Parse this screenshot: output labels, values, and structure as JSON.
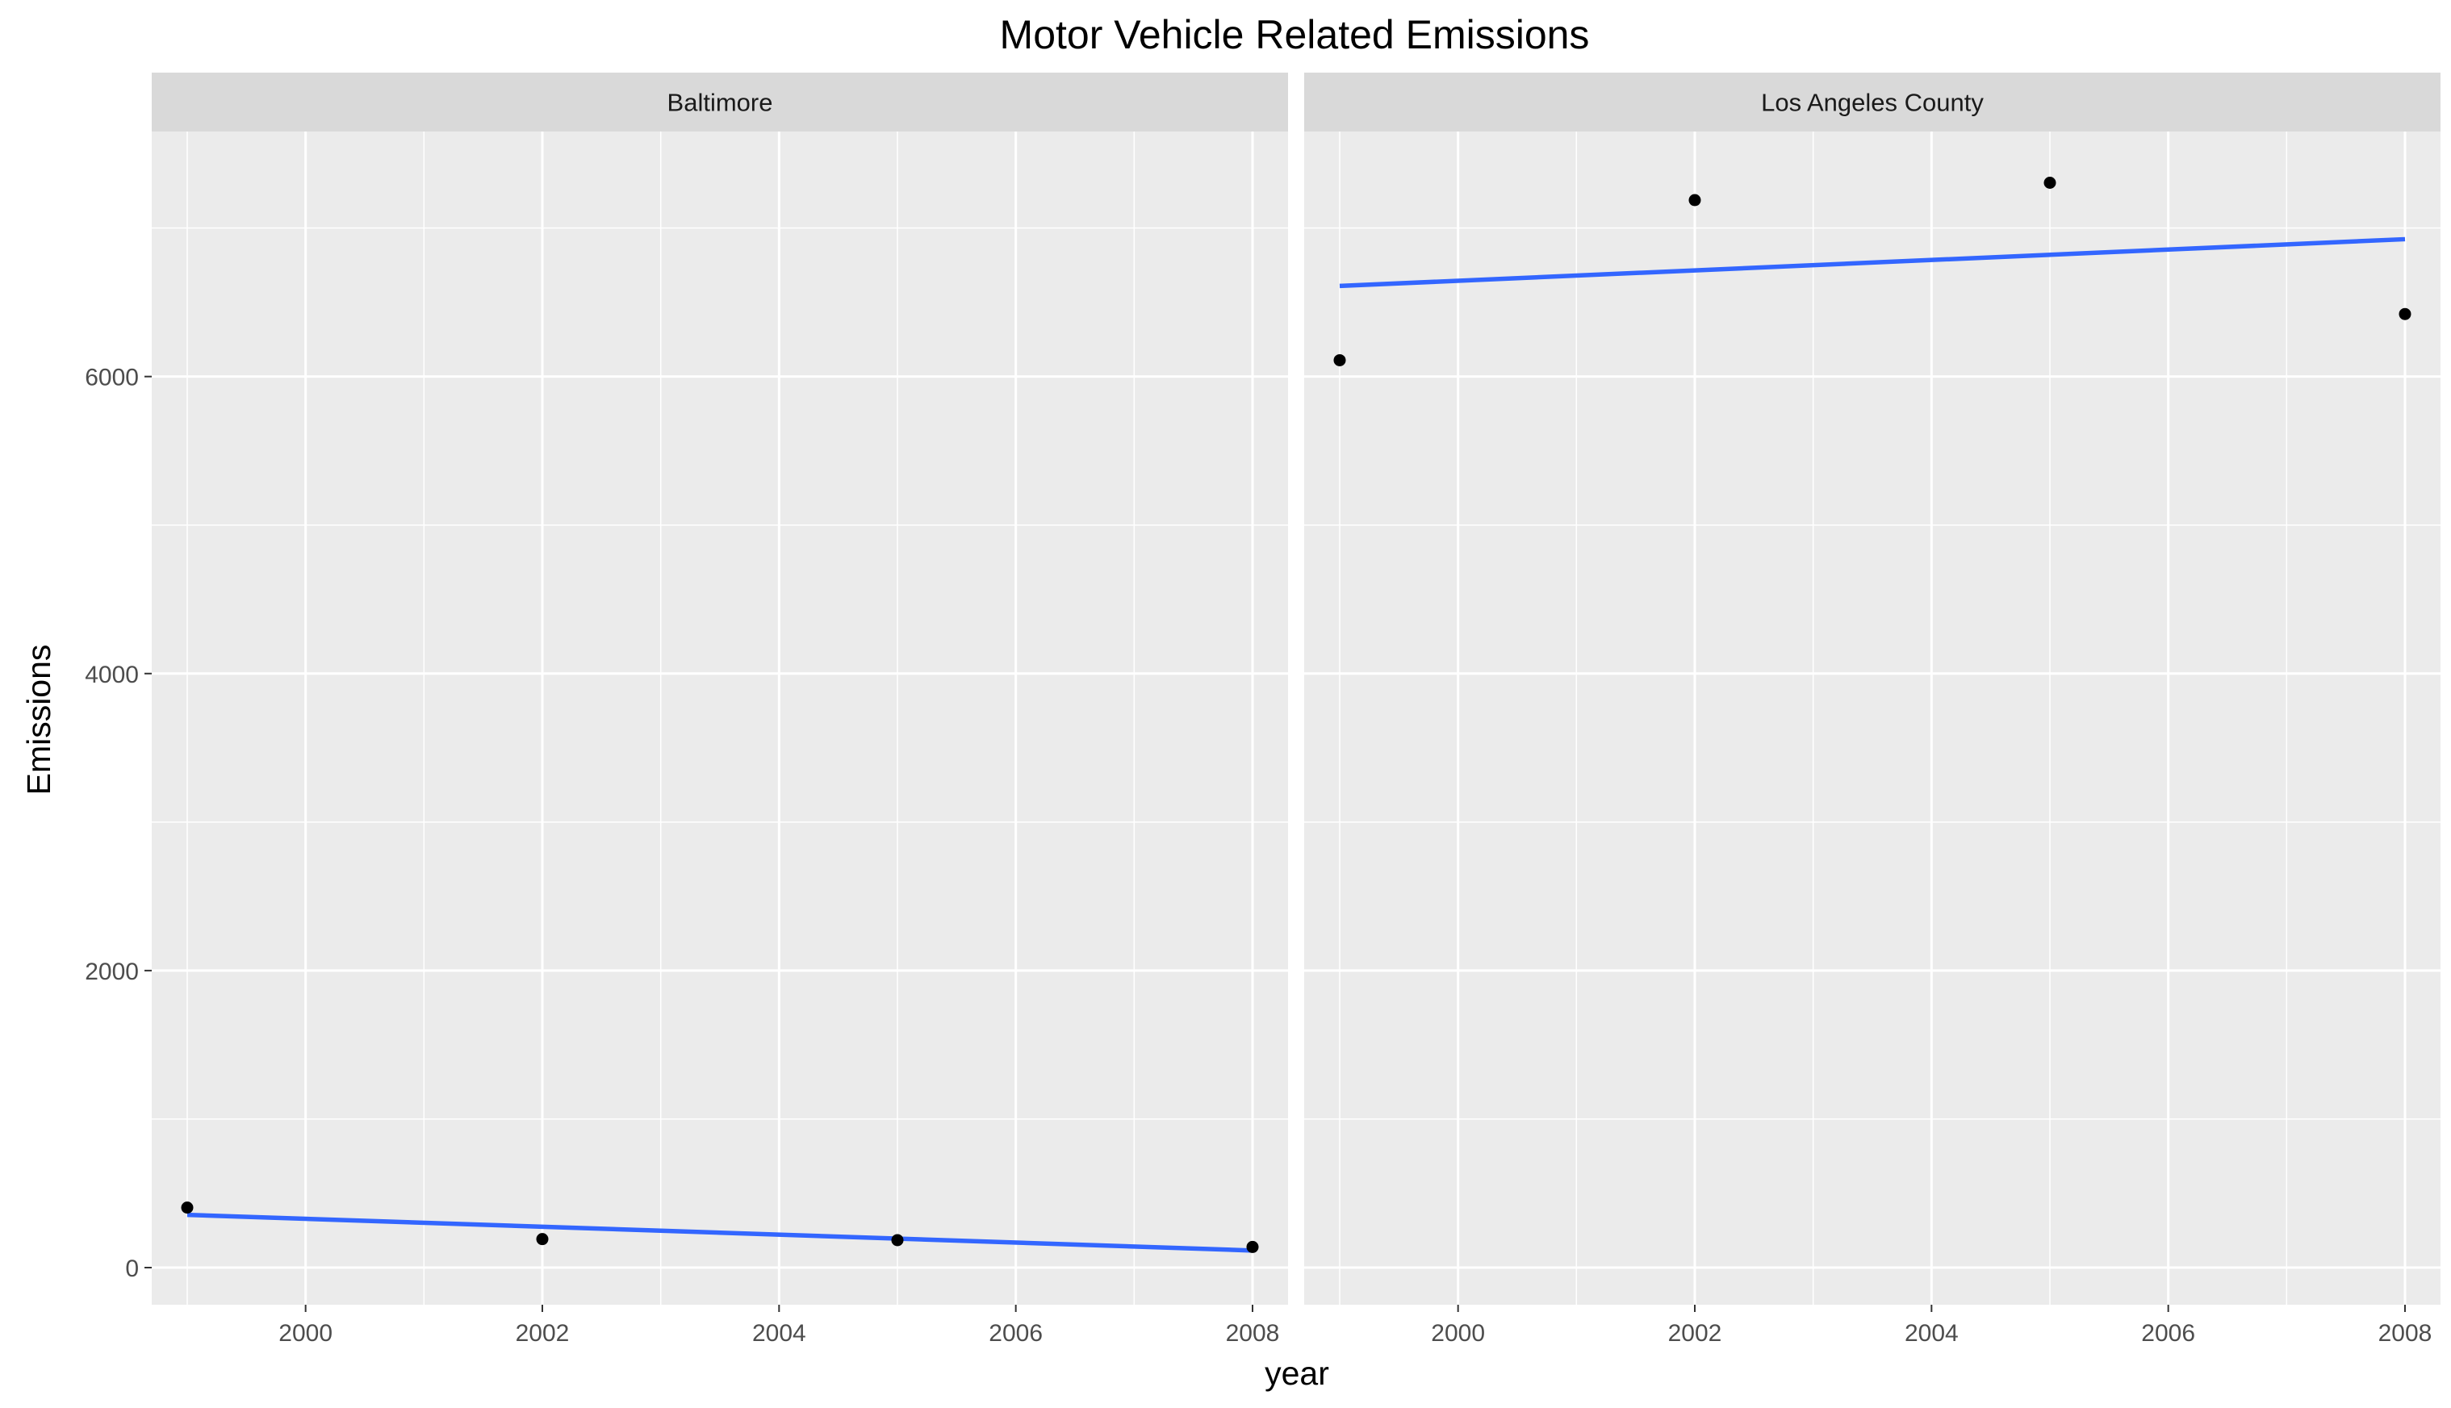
{
  "chart_data": {
    "type": "scatter",
    "title": "Motor Vehicle Related Emissions",
    "xlabel": "year",
    "ylabel": "Emissions",
    "xlim": [
      1998.7,
      2008.3
    ],
    "ylim": [
      -250,
      7650
    ],
    "x_ticks": [
      2000,
      2002,
      2004,
      2006,
      2008
    ],
    "y_ticks": [
      0,
      2000,
      4000,
      6000
    ],
    "grid": true,
    "facets": [
      {
        "name": "Baltimore",
        "points": [
          {
            "x": 1999,
            "y": 404
          },
          {
            "x": 2002,
            "y": 192
          },
          {
            "x": 2005,
            "y": 185
          },
          {
            "x": 2008,
            "y": 139
          }
        ],
        "trend": {
          "x": [
            1999,
            2008
          ],
          "y": [
            355,
            115
          ]
        }
      },
      {
        "name": "Los Angeles County",
        "points": [
          {
            "x": 1999,
            "y": 6110
          },
          {
            "x": 2002,
            "y": 7188
          },
          {
            "x": 2005,
            "y": 7305
          },
          {
            "x": 2008,
            "y": 6421
          }
        ],
        "trend": {
          "x": [
            1999,
            2008
          ],
          "y": [
            6610,
            6925
          ]
        }
      }
    ],
    "colors": {
      "panel_background": "#ebebeb",
      "strip_background": "#d9d9d9",
      "grid": "#ffffff",
      "points": "#000000",
      "trend_line": "#3366ff"
    }
  }
}
